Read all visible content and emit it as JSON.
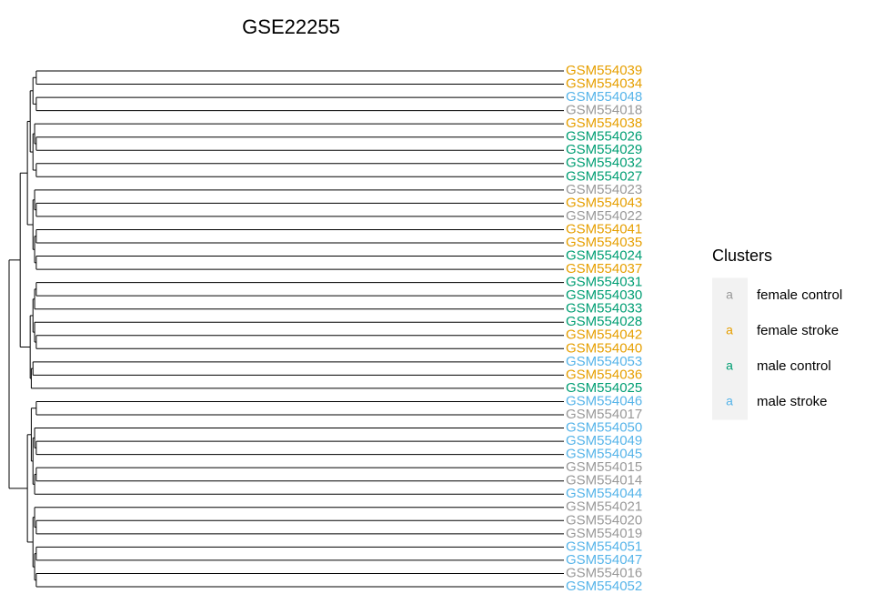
{
  "chart_data": {
    "type": "dendrogram",
    "title": "GSE22255",
    "legend_title": "Clusters",
    "legend_key_symbol": "a",
    "groups": [
      {
        "name": "female control",
        "color": "#999999"
      },
      {
        "name": "female stroke",
        "color": "#E69F00"
      },
      {
        "name": "male control",
        "color": "#009E73"
      },
      {
        "name": "male stroke",
        "color": "#56B4E9"
      }
    ],
    "leaves": [
      {
        "label": "GSM554039",
        "group": 1
      },
      {
        "label": "GSM554034",
        "group": 1
      },
      {
        "label": "GSM554048",
        "group": 3
      },
      {
        "label": "GSM554018",
        "group": 0
      },
      {
        "label": "GSM554038",
        "group": 1
      },
      {
        "label": "GSM554026",
        "group": 2
      },
      {
        "label": "GSM554029",
        "group": 2
      },
      {
        "label": "GSM554032",
        "group": 2
      },
      {
        "label": "GSM554027",
        "group": 2
      },
      {
        "label": "GSM554023",
        "group": 0
      },
      {
        "label": "GSM554043",
        "group": 1
      },
      {
        "label": "GSM554022",
        "group": 0
      },
      {
        "label": "GSM554041",
        "group": 1
      },
      {
        "label": "GSM554035",
        "group": 1
      },
      {
        "label": "GSM554024",
        "group": 2
      },
      {
        "label": "GSM554037",
        "group": 1
      },
      {
        "label": "GSM554031",
        "group": 2
      },
      {
        "label": "GSM554030",
        "group": 2
      },
      {
        "label": "GSM554033",
        "group": 2
      },
      {
        "label": "GSM554028",
        "group": 2
      },
      {
        "label": "GSM554042",
        "group": 1
      },
      {
        "label": "GSM554040",
        "group": 1
      },
      {
        "label": "GSM554053",
        "group": 3
      },
      {
        "label": "GSM554036",
        "group": 1
      },
      {
        "label": "GSM554025",
        "group": 2
      },
      {
        "label": "GSM554046",
        "group": 3
      },
      {
        "label": "GSM554017",
        "group": 0
      },
      {
        "label": "GSM554050",
        "group": 3
      },
      {
        "label": "GSM554049",
        "group": 3
      },
      {
        "label": "GSM554045",
        "group": 3
      },
      {
        "label": "GSM554015",
        "group": 0
      },
      {
        "label": "GSM554014",
        "group": 0
      },
      {
        "label": "GSM554044",
        "group": 3
      },
      {
        "label": "GSM554021",
        "group": 0
      },
      {
        "label": "GSM554020",
        "group": 0
      },
      {
        "label": "GSM554019",
        "group": 0
      },
      {
        "label": "GSM554051",
        "group": 3
      },
      {
        "label": "GSM554047",
        "group": 3
      },
      {
        "label": "GSM554016",
        "group": 0
      },
      {
        "label": "GSM554052",
        "group": 3
      }
    ],
    "merge": [
      [
        -1,
        -2
      ],
      [
        -3,
        -4
      ],
      [
        1,
        2
      ],
      [
        -6,
        -7
      ],
      [
        -5,
        4
      ],
      [
        -8,
        -9
      ],
      [
        5,
        6
      ],
      [
        3,
        7
      ],
      [
        -11,
        -12
      ],
      [
        -10,
        9
      ],
      [
        -13,
        -14
      ],
      [
        -15,
        -16
      ],
      [
        11,
        12
      ],
      [
        10,
        13
      ],
      [
        8,
        14
      ],
      [
        -17,
        -18
      ],
      [
        16,
        -19
      ],
      [
        -21,
        -22
      ],
      [
        -20,
        18
      ],
      [
        17,
        19
      ],
      [
        -23,
        -24
      ],
      [
        21,
        -25
      ],
      [
        20,
        22
      ],
      [
        15,
        23
      ],
      [
        -26,
        -27
      ],
      [
        -29,
        -30
      ],
      [
        -28,
        26
      ],
      [
        -31,
        -32
      ],
      [
        28,
        -33
      ],
      [
        27,
        29
      ],
      [
        25,
        30
      ],
      [
        -35,
        -36
      ],
      [
        -34,
        32
      ],
      [
        -37,
        -38
      ],
      [
        -39,
        -40
      ],
      [
        34,
        35
      ],
      [
        33,
        36
      ],
      [
        31,
        37
      ],
      [
        24,
        38
      ]
    ],
    "heights": [
      0.951,
      0.951,
      0.957,
      0.951,
      0.954,
      0.951,
      0.957,
      0.962,
      0.951,
      0.954,
      0.951,
      0.951,
      0.954,
      0.957,
      0.967,
      0.951,
      0.954,
      0.951,
      0.954,
      0.957,
      0.957,
      0.96,
      0.962,
      0.98,
      0.951,
      0.951,
      0.954,
      0.951,
      0.954,
      0.957,
      0.96,
      0.951,
      0.954,
      0.951,
      0.951,
      0.954,
      0.957,
      0.967,
      1.0
    ],
    "xlim": [
      0,
      1
    ]
  }
}
